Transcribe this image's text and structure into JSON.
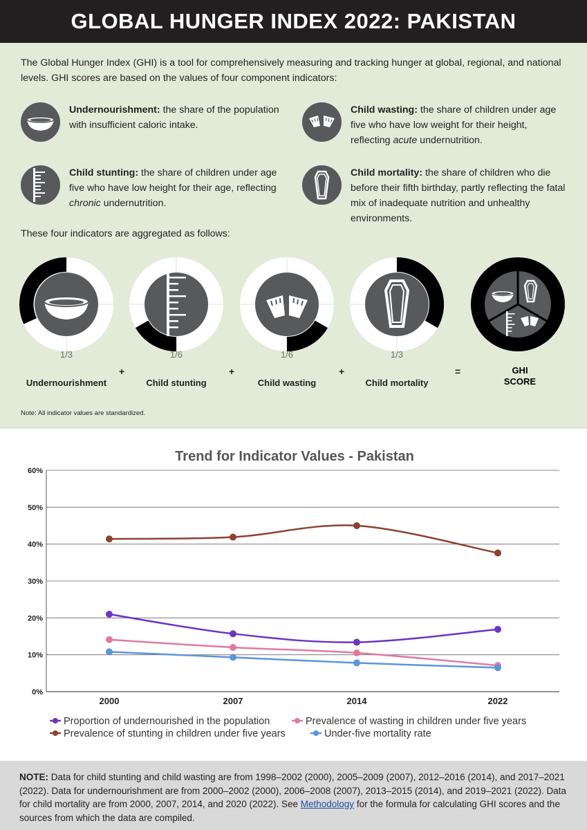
{
  "header": {
    "title": "GLOBAL HUNGER INDEX 2022: PAKISTAN"
  },
  "intro": "The Global Hunger Index (GHI) is a tool for comprehensively measuring and tracking hunger at global, regional, and national levels. GHI scores are based on the values of four component indicators:",
  "indicators": {
    "undernourishment": {
      "term": "Undernourishment:",
      "desc": " the share of the population with insufficient caloric intake."
    },
    "wasting": {
      "term": "Child wasting:",
      "desc_pre": " the share of children under age five who have low weight for their height, reflecting ",
      "desc_em": "acute",
      "desc_post": " undernutrition."
    },
    "stunting": {
      "term": "Child stunting:",
      "desc_pre": " the share of children under age five who have low height for their age, reflecting ",
      "desc_em": "chronic",
      "desc_post": " undernutrition."
    },
    "mortality": {
      "term": "Child mortality:",
      "desc": " the share of children who die before their fifth birthday, partly reflecting the fatal mix of inadequate nutrition and unhealthy environments."
    }
  },
  "aggregation": {
    "lead": "These four indicators are aggregated as follows:",
    "items": [
      {
        "fraction": "1/3",
        "label": "Undernourishment",
        "weight": 0.3333
      },
      {
        "fraction": "1/6",
        "label": "Child stunting",
        "weight": 0.1667
      },
      {
        "fraction": "1/6",
        "label": "Child wasting",
        "weight": 0.1667
      },
      {
        "fraction": "1/3",
        "label": "Child mortality",
        "weight": 0.3333
      }
    ],
    "plus": "+",
    "equals": "=",
    "result_line1": "GHI",
    "result_line2": "SCORE",
    "note": "Note: All indicator values are standardized."
  },
  "colors": {
    "undernourishment": "#6a35c2",
    "wasting": "#e07aa3",
    "stunting": "#8b4330",
    "mortality": "#5b95dc"
  },
  "chart_data": {
    "type": "line",
    "title": "Trend for Indicator Values - Pakistan",
    "x": [
      "2000",
      "2007",
      "2014",
      "2022"
    ],
    "y_ticks": [
      "0%",
      "10%",
      "20%",
      "30%",
      "40%",
      "50%",
      "60%"
    ],
    "ylim": [
      0,
      60
    ],
    "grid": true,
    "legend_position": "bottom",
    "series": [
      {
        "name": "Proportion of undernourished in the population",
        "key": "undernourishment",
        "values": [
          21.0,
          15.7,
          13.4,
          16.9
        ]
      },
      {
        "name": "Prevalence of wasting in children under five years",
        "key": "wasting",
        "values": [
          14.1,
          12.0,
          10.5,
          7.1
        ]
      },
      {
        "name": "Prevalence of stunting in children under five years",
        "key": "stunting",
        "values": [
          41.4,
          41.9,
          45.0,
          37.6
        ]
      },
      {
        "name": "Under-five mortality rate",
        "key": "mortality",
        "values": [
          10.8,
          9.3,
          7.8,
          6.5
        ]
      }
    ]
  },
  "footer": {
    "note_label": "NOTE:",
    "text_pre": " Data for child stunting and child wasting are from 1998–2002 (2000), 2005–2009 (2007), 2012–2016 (2014), and 2017–2021 (2022). Data for undernourishment are from 2000–2002 (2000), 2006–2008 (2007), 2013–2015 (2014), and 2019–2021 (2022). Data for child mortality are from 2000, 2007, 2014, and 2020 (2022). See ",
    "link": "Methodology",
    "text_post": " for the formula for calculating GHI scores and the sources from which the data are compiled."
  }
}
